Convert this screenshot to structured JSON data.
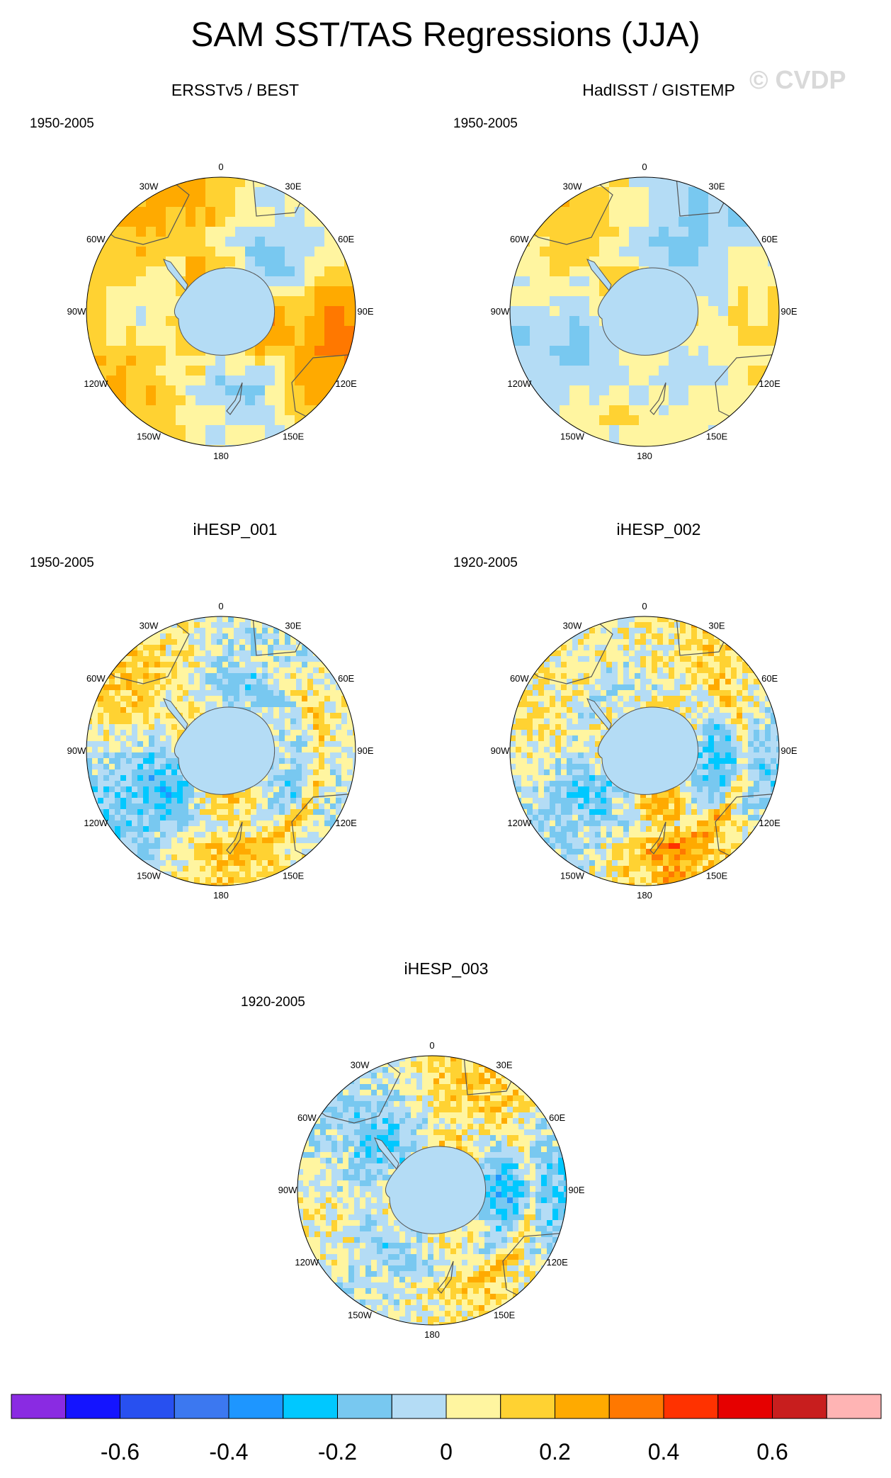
{
  "title": "SAM SST/TAS Regressions (JJA)",
  "watermark": "© CVDP",
  "map_labels": {
    "lon_labels": [
      "0",
      "30E",
      "60E",
      "90E",
      "120E",
      "150E",
      "180",
      "150W",
      "120W",
      "90W",
      "60W",
      "30W"
    ]
  },
  "panels": [
    {
      "title": "ERSSTv5 / BEST",
      "period": "1950-2005",
      "style": "smooth",
      "intensity": 0.9,
      "bias": 0.45
    },
    {
      "title": "HadISST / GISTEMP",
      "period": "1950-2005",
      "style": "smooth",
      "intensity": 0.6,
      "bias": 0.1
    },
    {
      "title": "iHESP_001",
      "period": "1950-2005",
      "style": "noisy",
      "intensity": 0.75,
      "bias": 0.05
    },
    {
      "title": "iHESP_002",
      "period": "1920-2005",
      "style": "noisy",
      "intensity": 0.8,
      "bias": 0.12
    },
    {
      "title": "iHESP_003",
      "period": "1920-2005",
      "style": "noisy",
      "intensity": 0.75,
      "bias": 0.0
    }
  ],
  "colorbar": {
    "colors": [
      "#8a2be2",
      "#1414ff",
      "#2850f0",
      "#3c78f0",
      "#1e96ff",
      "#00c8ff",
      "#78c8f0",
      "#b4dcf5",
      "#fff5a0",
      "#ffd232",
      "#ffaa00",
      "#ff7800",
      "#ff3200",
      "#e60000",
      "#c81e1e",
      "#ffb4b4"
    ],
    "tick_labels": [
      "-0.6",
      "-0.4",
      "-0.2",
      "0",
      "0.2",
      "0.4",
      "0.6"
    ],
    "tick_values": [
      -0.6,
      -0.4,
      -0.2,
      0,
      0.2,
      0.4,
      0.6
    ],
    "boundaries": [
      -0.7,
      -0.6,
      -0.5,
      -0.4,
      -0.3,
      -0.2,
      -0.1,
      0,
      0.1,
      0.2,
      0.3,
      0.4,
      0.5,
      0.6,
      0.7
    ]
  }
}
